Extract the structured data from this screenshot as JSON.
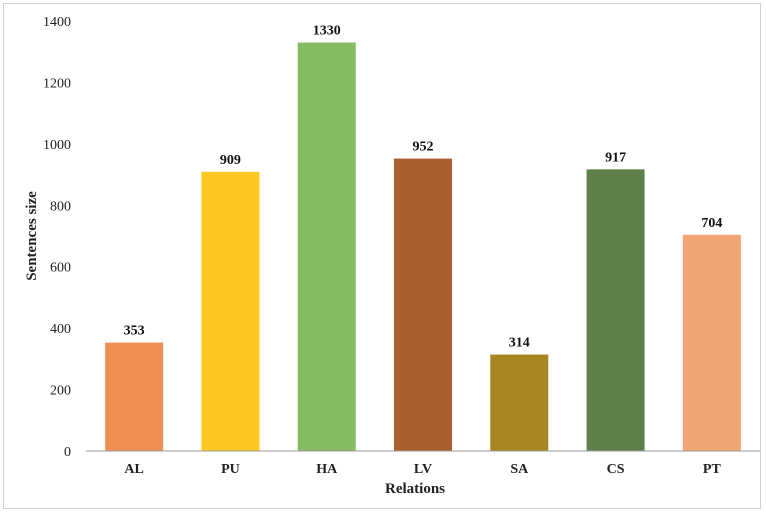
{
  "chart_data": {
    "type": "bar",
    "title": "",
    "xlabel": "Relations",
    "ylabel": "Sentences size",
    "categories": [
      "AL",
      "PU",
      "HA",
      "LV",
      "SA",
      "CS",
      "PT"
    ],
    "values": [
      353,
      909,
      1330,
      952,
      314,
      917,
      704
    ],
    "colors": [
      "#ef8e53",
      "#ffc722",
      "#85bb63",
      "#ab5f2e",
      "#a88624",
      "#5e804b",
      "#f1a573"
    ],
    "ylim": [
      0,
      1400
    ],
    "yticks": [
      0,
      200,
      400,
      600,
      800,
      1000,
      1200,
      1400
    ],
    "grid": false,
    "legend": false,
    "data_labels": true
  }
}
